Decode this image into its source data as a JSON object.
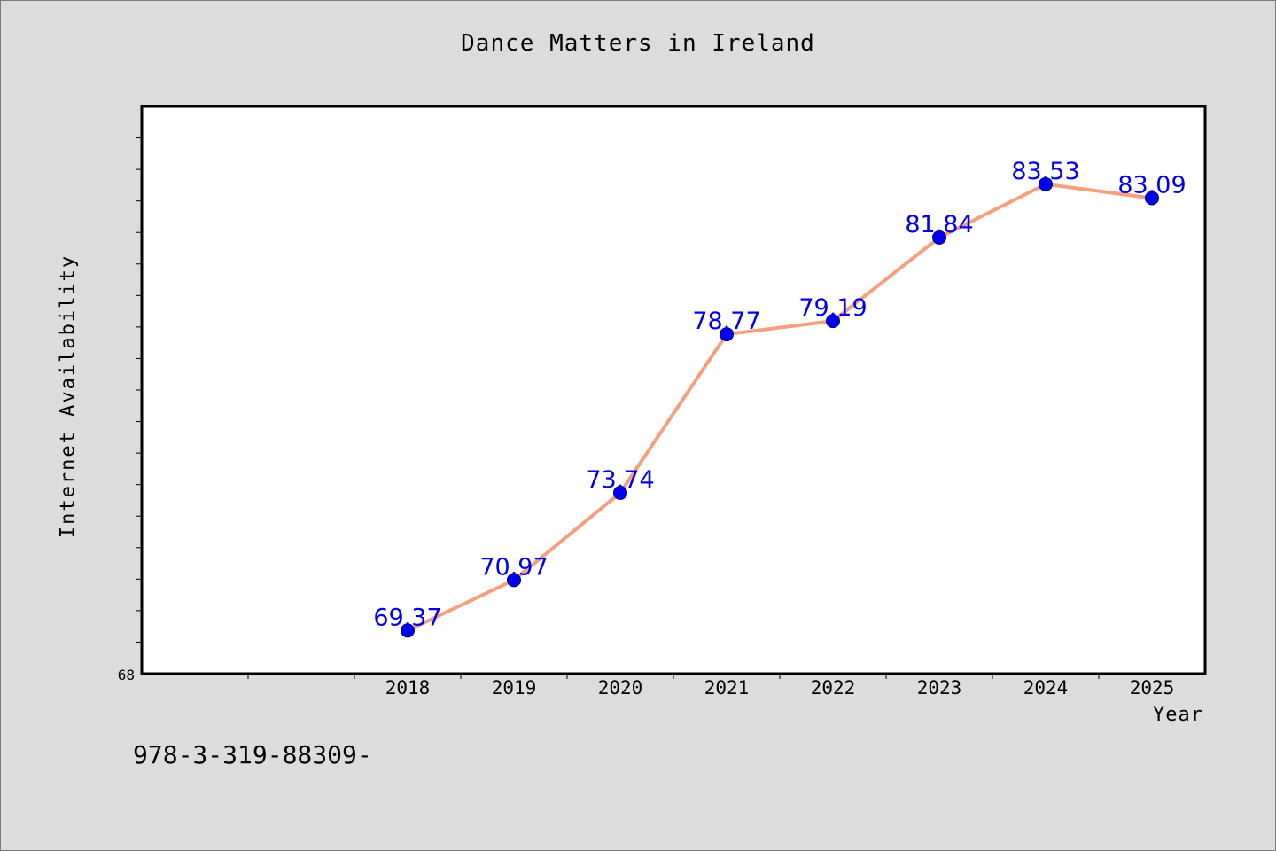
{
  "chart_data": {
    "type": "line",
    "title": "Dance Matters in Ireland",
    "xlabel": "Year",
    "ylabel": "Internet Availability",
    "categories": [
      "2018",
      "2019",
      "2020",
      "2021",
      "2022",
      "2023",
      "2024",
      "2025"
    ],
    "series": [
      {
        "values": [
          69.37,
          70.97,
          73.74,
          78.77,
          79.19,
          81.84,
          83.53,
          83.09
        ],
        "data_labels": [
          "69.37",
          "70.97",
          "73.74",
          "78.77",
          "79.19",
          "81.84",
          "83.53",
          "83.09"
        ],
        "line_color": "#f4a07e",
        "marker_color": "#0000ee",
        "label_color": "#0000ee"
      }
    ],
    "y_tick_labels": [
      "68"
    ],
    "ylim": [
      68,
      86
    ],
    "y_minor_step": 1,
    "x_slots": 10,
    "first_category_slot": 2,
    "grid": false,
    "legend": "none"
  },
  "footer_text": "978-3-319-88309-"
}
